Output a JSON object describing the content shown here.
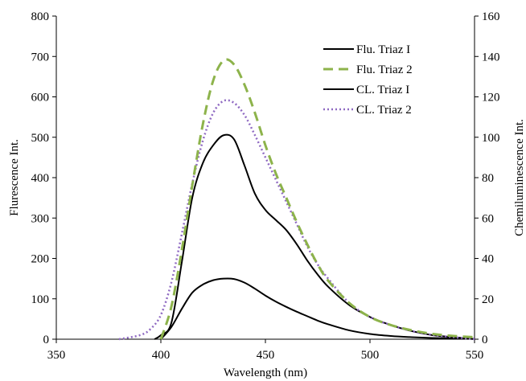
{
  "chart_data": {
    "type": "line",
    "title": "",
    "xlabel": "Wavelength (nm)",
    "ylabel": "Flurescence Int.",
    "y2label": "Chemiluminescence Int.",
    "xlim": [
      350,
      550
    ],
    "ylim": [
      0,
      800
    ],
    "y2lim": [
      0,
      160
    ],
    "xticks": [
      "350",
      "400",
      "450",
      "500",
      "550"
    ],
    "yticks": [
      "0",
      "100",
      "200",
      "300",
      "400",
      "500",
      "600",
      "700",
      "800"
    ],
    "y2ticks": [
      "0",
      "20",
      "40",
      "60",
      "80",
      "100",
      "120",
      "140",
      "160"
    ],
    "grid": false,
    "legend_position": "top-right",
    "series": [
      {
        "name": "Flu. Triaz I",
        "axis": "left",
        "color": "#000000",
        "style": "solid",
        "x": [
          400,
          405,
          410,
          415,
          420,
          425,
          430,
          435,
          440,
          445,
          450,
          455,
          460,
          465,
          470,
          475,
          480,
          490,
          500,
          510,
          520,
          530,
          540,
          550
        ],
        "y": [
          0,
          30,
          75,
          115,
          135,
          146,
          150,
          149,
          140,
          125,
          108,
          93,
          80,
          68,
          57,
          46,
          37,
          22,
          13,
          8,
          5,
          3,
          2,
          1
        ]
      },
      {
        "name": "Flu. Triaz 2",
        "axis": "left",
        "color": "#8db34b",
        "style": "dashed",
        "x": [
          400,
          405,
          410,
          415,
          420,
          425,
          430,
          435,
          440,
          445,
          450,
          455,
          460,
          465,
          470,
          475,
          480,
          490,
          500,
          510,
          520,
          530,
          540,
          550
        ],
        "y": [
          0,
          80,
          220,
          380,
          530,
          640,
          690,
          680,
          630,
          560,
          480,
          410,
          350,
          290,
          235,
          185,
          145,
          90,
          55,
          35,
          22,
          13,
          8,
          5
        ]
      },
      {
        "name": "CL. Triaz I",
        "axis": "right",
        "color": "#000000",
        "style": "solid",
        "x": [
          397,
          400,
          405,
          410,
          415,
          420,
          425,
          430,
          435,
          440,
          445,
          450,
          455,
          460,
          465,
          470,
          475,
          480,
          490,
          500,
          510,
          520,
          530,
          540,
          550
        ],
        "y": [
          0,
          2,
          8,
          38,
          70,
          87,
          96,
          101,
          99,
          86,
          72,
          64,
          59,
          54,
          47,
          39,
          32,
          26,
          17,
          11,
          7,
          4,
          2,
          1,
          0
        ]
      },
      {
        "name": "CL. Triaz 2",
        "axis": "right",
        "color": "#8f6ac2",
        "style": "dotted",
        "x": [
          380,
          390,
          395,
          400,
          405,
          410,
          415,
          420,
          425,
          430,
          435,
          440,
          445,
          450,
          455,
          460,
          465,
          470,
          475,
          480,
          490,
          500,
          510,
          520,
          530,
          540,
          550
        ],
        "y": [
          0,
          2,
          5,
          12,
          28,
          52,
          77,
          98,
          112,
          118,
          117,
          111,
          101,
          90,
          79,
          68,
          57,
          46,
          37,
          30,
          18,
          11,
          7,
          4,
          2,
          1,
          0
        ]
      }
    ]
  }
}
